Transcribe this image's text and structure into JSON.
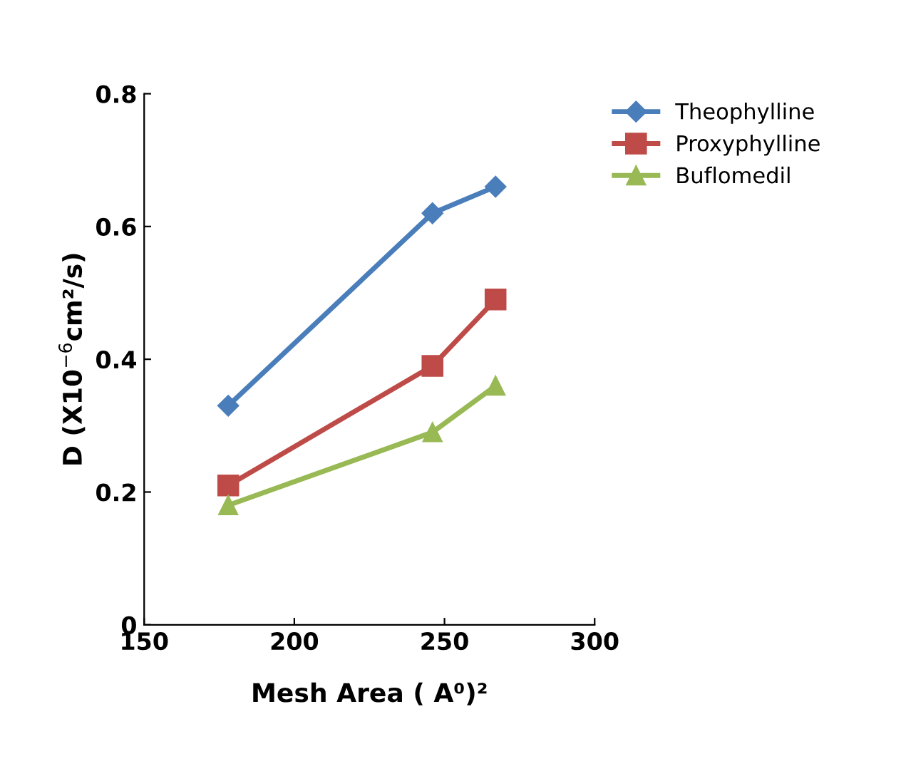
{
  "chart_data": {
    "type": "line",
    "xlabel": "Mesh Area ( A⁰)²",
    "ylabel": "D (X10$^{−6}$cm²/s)",
    "xlim": [
      150,
      300
    ],
    "xticks": [
      150,
      200,
      250,
      300
    ],
    "ylim": [
      0,
      0.8
    ],
    "yticks": [
      0,
      0.2,
      0.4,
      0.6,
      0.8
    ],
    "grid": false,
    "legend": "top right",
    "line_style": "solid",
    "series": [
      {
        "name": "Theophylline",
        "color": "#4a7ebb",
        "marker": "diamond",
        "x": [
          178,
          246,
          267
        ],
        "values": [
          0.33,
          0.62,
          0.66
        ]
      },
      {
        "name": "Proxyphylline",
        "color": "#be4b48",
        "marker": "square",
        "x": [
          178,
          246,
          267
        ],
        "values": [
          0.21,
          0.39,
          0.49
        ]
      },
      {
        "name": "Buflomedil",
        "color": "#98b954",
        "marker": "triangle",
        "x": [
          178,
          246,
          267
        ],
        "values": [
          0.18,
          0.29,
          0.36
        ]
      }
    ]
  }
}
